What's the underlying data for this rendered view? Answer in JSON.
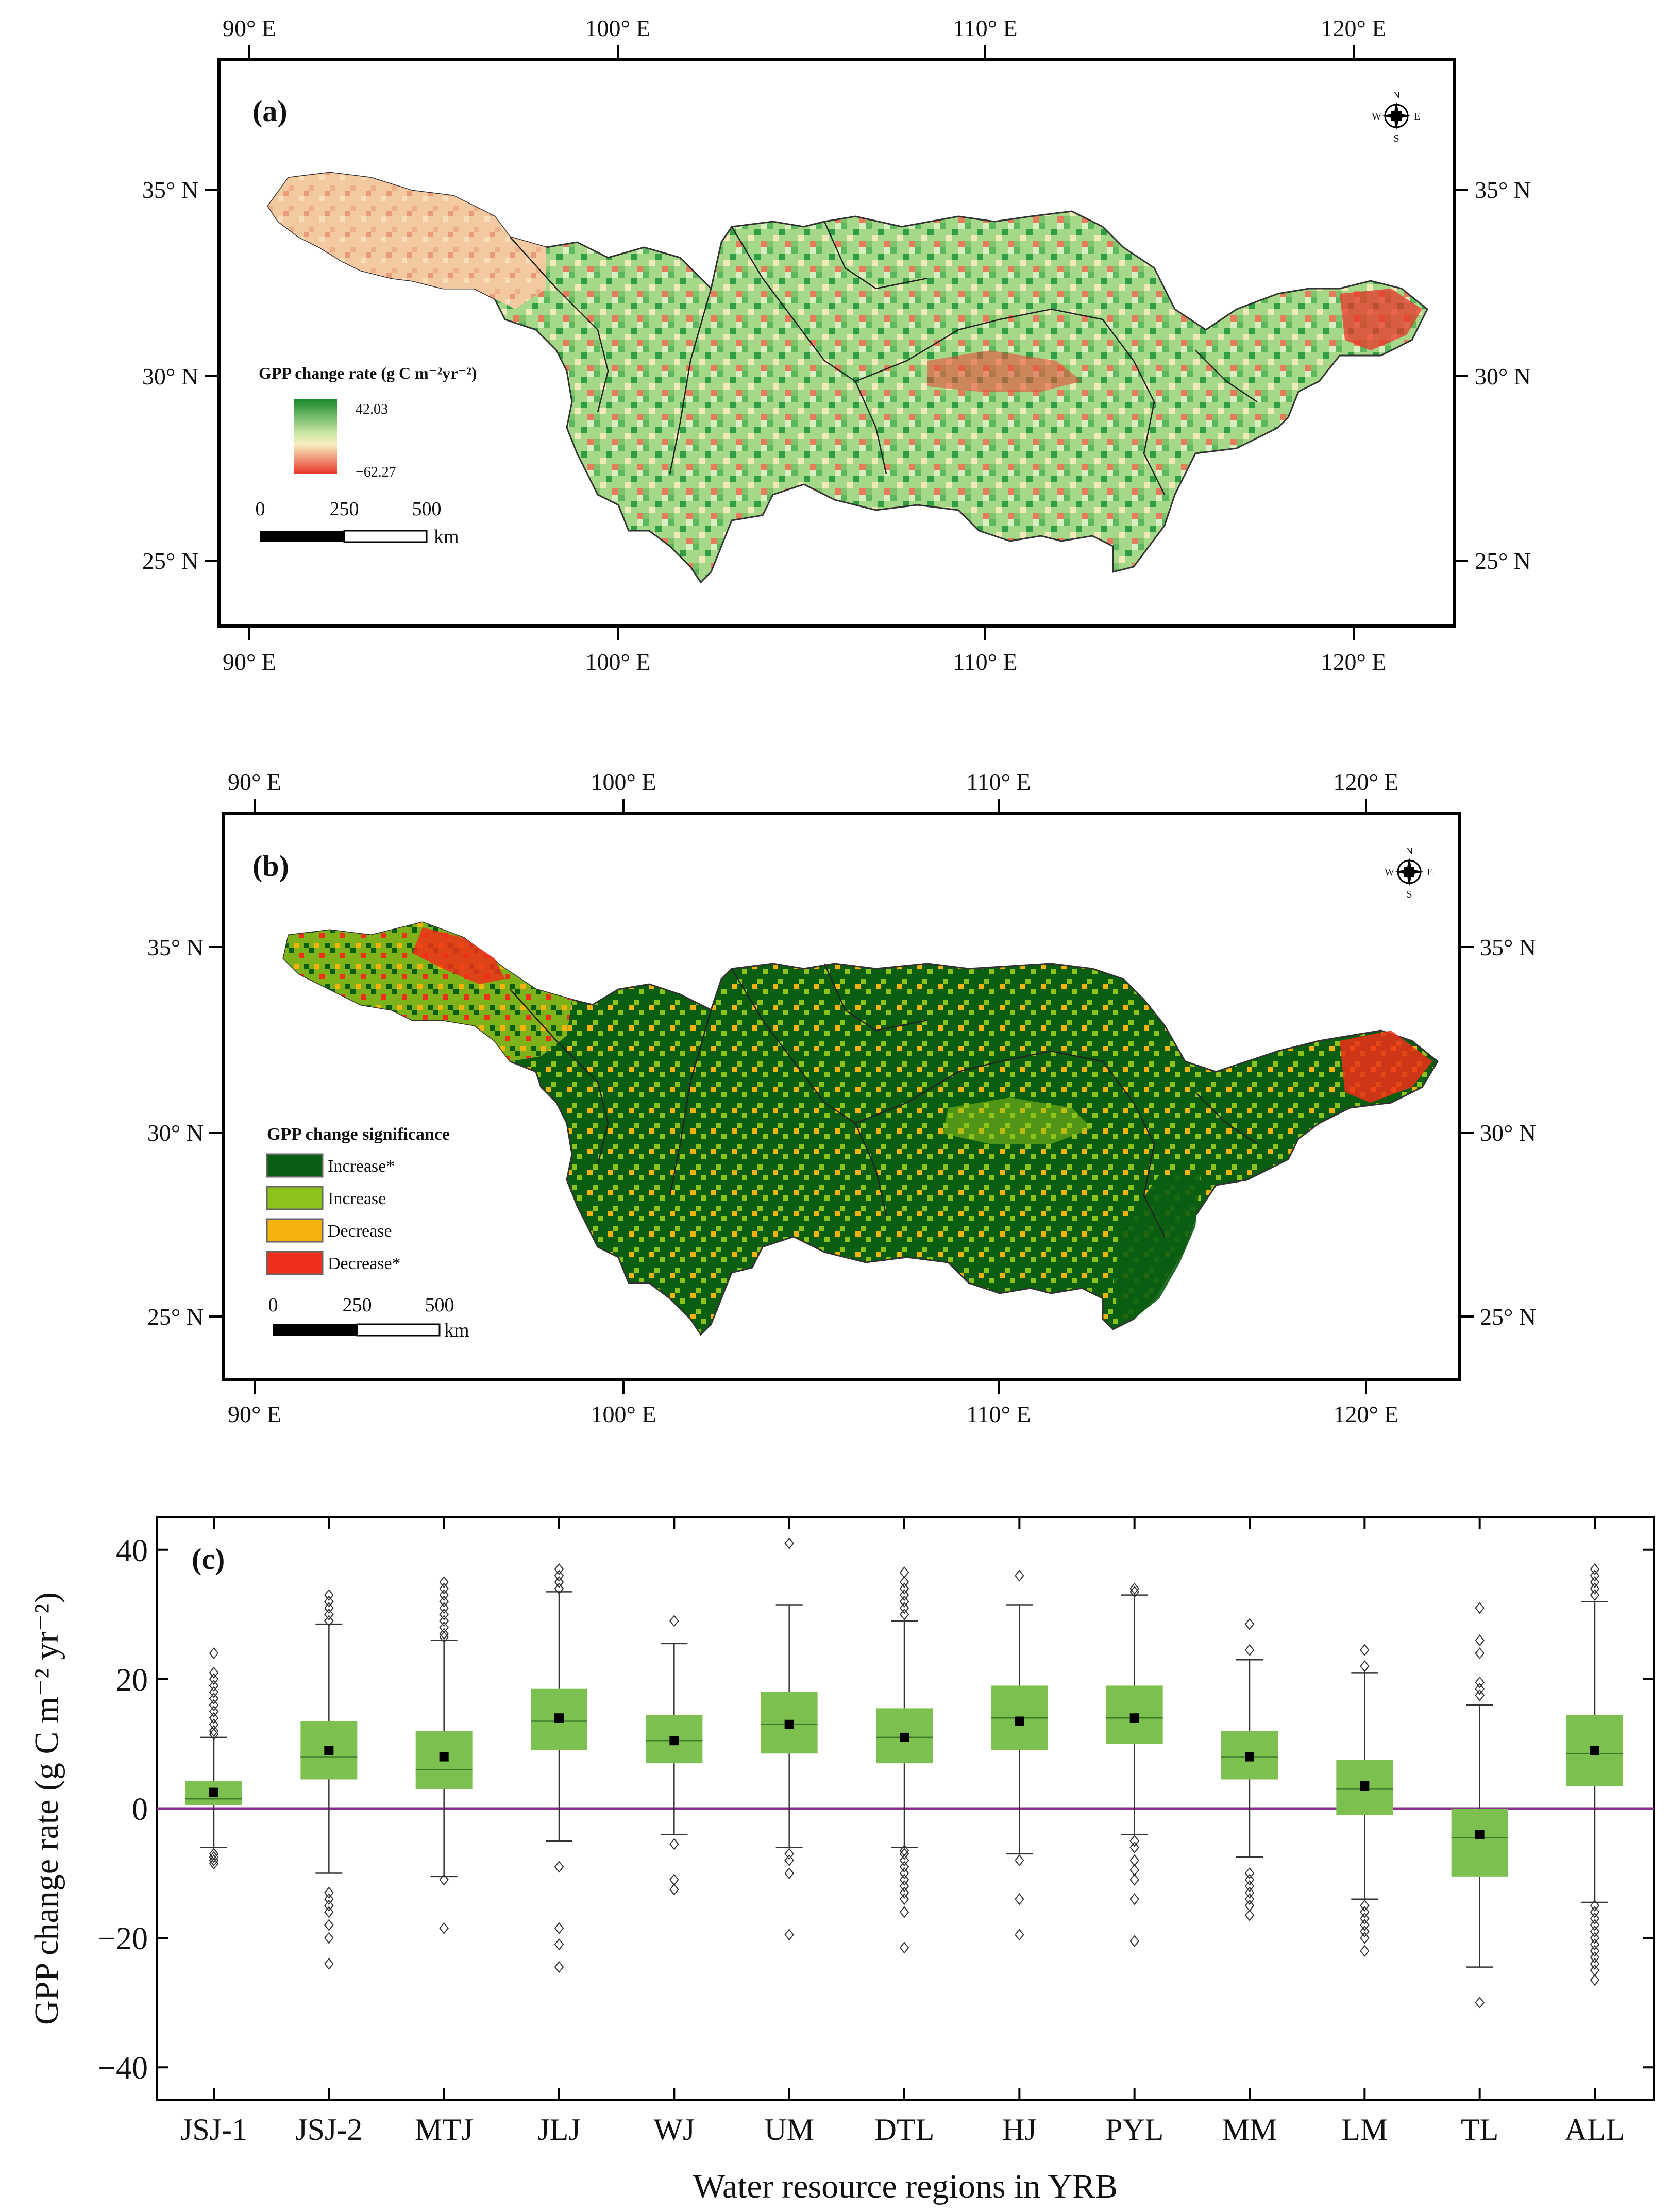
{
  "panel_a": {
    "label": "(a)",
    "lon_labels": [
      "90° E",
      "100° E",
      "110° E",
      "120° E"
    ],
    "lat_labels": [
      "35° N",
      "30° N",
      "25° N"
    ],
    "compass": {
      "n": "N",
      "s": "S",
      "e": "E",
      "w": "W"
    },
    "legend": {
      "title": "GPP change rate (g C m⁻²yr⁻²)",
      "max": "42.03",
      "min": "−62.27",
      "colors": {
        "high": "#1a8a2e",
        "mid": "#f7efc0",
        "low": "#e8362a"
      }
    },
    "scalebar": {
      "ticks": [
        "0",
        "250",
        "500"
      ],
      "unit": "km"
    }
  },
  "panel_b": {
    "label": "(b)",
    "lon_labels": [
      "90° E",
      "100° E",
      "110° E",
      "120° E"
    ],
    "lat_labels": [
      "35° N",
      "30° N",
      "25° N"
    ],
    "compass": {
      "n": "N",
      "s": "S",
      "e": "E",
      "w": "W"
    },
    "legend": {
      "title": "GPP change significance",
      "items": [
        {
          "label": "Increase*",
          "color": "#0a5e12"
        },
        {
          "label": "Increase",
          "color": "#8cc21a"
        },
        {
          "label": "Decrease",
          "color": "#f4b20c"
        },
        {
          "label": "Decrease*",
          "color": "#f0301a"
        }
      ]
    },
    "scalebar": {
      "ticks": [
        "0",
        "250",
        "500"
      ],
      "unit": "km"
    }
  },
  "chart_data": {
    "type": "box",
    "label": "(c)",
    "xlabel": "Water resource regions in YRB",
    "ylabel": "GPP change rate (g C m⁻² yr⁻²)",
    "ylim": [
      -45,
      45
    ],
    "yticks": [
      -40,
      -20,
      0,
      20,
      40
    ],
    "box_color": "#7cc04f",
    "zero_line_color": "#8b2f8f",
    "categories": [
      "JSJ-1",
      "JSJ-2",
      "MTJ",
      "JLJ",
      "WJ",
      "UM",
      "DTL",
      "HJ",
      "PYL",
      "MM",
      "LM",
      "TL",
      "ALL"
    ],
    "boxes": [
      {
        "q1": 0.5,
        "median": 1.5,
        "q3": 4.3,
        "mean": 2.5,
        "wlow": -6,
        "whigh": 11,
        "outliers": [
          -7,
          -7.5,
          -8,
          -8.5,
          11.5,
          12,
          13,
          14,
          15,
          16,
          17,
          18,
          19,
          20,
          21,
          24
        ]
      },
      {
        "q1": 4.5,
        "median": 8.0,
        "q3": 13.5,
        "mean": 9.0,
        "wlow": -10,
        "whigh": 28.5,
        "outliers": [
          -13,
          -14,
          -15,
          -16,
          -18,
          -20,
          -24,
          29,
          30,
          31,
          32,
          33
        ]
      },
      {
        "q1": 3.0,
        "median": 6.0,
        "q3": 12.0,
        "mean": 8.0,
        "wlow": -10.5,
        "whigh": 26,
        "outliers": [
          -11,
          -18.5,
          26.5,
          27,
          28,
          29,
          30,
          31,
          32,
          33,
          34,
          35
        ]
      },
      {
        "q1": 9.0,
        "median": 13.5,
        "q3": 18.5,
        "mean": 14.0,
        "wlow": -5,
        "whigh": 33.5,
        "outliers": [
          -9,
          -18.5,
          -21,
          -24.5,
          34,
          35,
          36,
          37
        ]
      },
      {
        "q1": 7.0,
        "median": 10.5,
        "q3": 14.5,
        "mean": 10.5,
        "wlow": -4,
        "whigh": 25.5,
        "outliers": [
          -5.5,
          -11,
          -12.5,
          29
        ]
      },
      {
        "q1": 8.5,
        "median": 13.0,
        "q3": 18.0,
        "mean": 13.0,
        "wlow": -6,
        "whigh": 31.5,
        "outliers": [
          -7,
          -8,
          -10,
          -19.5,
          41
        ]
      },
      {
        "q1": 7.0,
        "median": 11.0,
        "q3": 15.5,
        "mean": 11.0,
        "wlow": -6,
        "whigh": 29,
        "outliers": [
          -6.5,
          -7,
          -8,
          -9,
          -10,
          -11,
          -12,
          -13,
          -14,
          -16,
          -21.5,
          30,
          31,
          32,
          33,
          34,
          35,
          36.5
        ]
      },
      {
        "q1": 9.0,
        "median": 14.0,
        "q3": 19.0,
        "mean": 13.5,
        "wlow": -7,
        "whigh": 31.5,
        "outliers": [
          -8,
          -14,
          -19.5,
          36
        ]
      },
      {
        "q1": 10.0,
        "median": 14.0,
        "q3": 19.0,
        "mean": 14.0,
        "wlow": -4,
        "whigh": 33,
        "outliers": [
          -5,
          -6,
          -8,
          -9.5,
          -11,
          -14,
          -20.5,
          33.5,
          34
        ]
      },
      {
        "q1": 4.5,
        "median": 8.0,
        "q3": 12.0,
        "mean": 8.0,
        "wlow": -7.5,
        "whigh": 23,
        "outliers": [
          -10,
          -11,
          -12,
          -13,
          -14,
          -15,
          -16.5,
          24.5,
          28.5
        ]
      },
      {
        "q1": -1.0,
        "median": 3.0,
        "q3": 7.5,
        "mean": 3.5,
        "wlow": -14,
        "whigh": 21,
        "outliers": [
          -15,
          -16,
          -17,
          -18,
          -19,
          -20,
          -22,
          22,
          24.5
        ]
      },
      {
        "q1": -10.5,
        "median": -4.5,
        "q3": 0,
        "mean": -4.0,
        "wlow": -24.5,
        "whigh": 16,
        "outliers": [
          -30,
          17.5,
          18.5,
          19.5,
          24,
          26,
          31
        ]
      },
      {
        "q1": 3.5,
        "median": 8.5,
        "q3": 14.5,
        "mean": 9.0,
        "wlow": -14.5,
        "whigh": 32,
        "outliers": [
          -15,
          -16,
          -17,
          -18,
          -19,
          -20,
          -21,
          -22,
          -23,
          -24,
          -25,
          -26.5,
          33,
          34,
          35,
          36,
          37
        ]
      }
    ]
  }
}
